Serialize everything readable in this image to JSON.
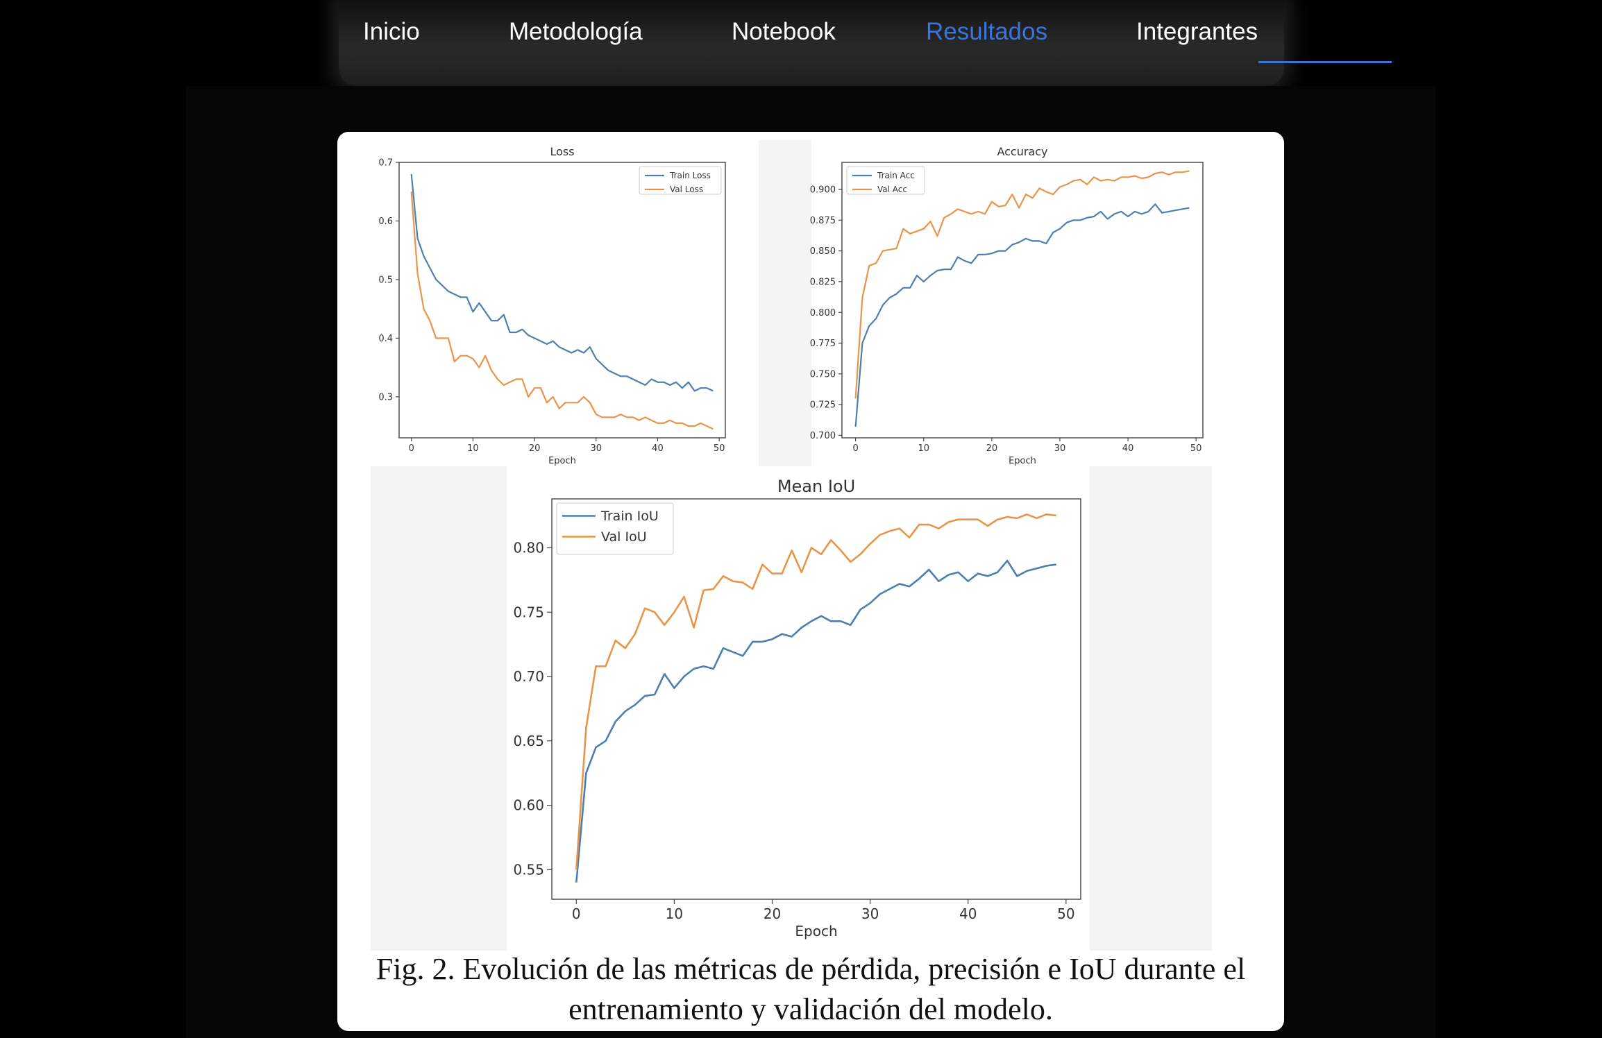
{
  "nav": {
    "items": [
      {
        "label": "Inicio"
      },
      {
        "label": "Metodología"
      },
      {
        "label": "Notebook"
      },
      {
        "label": "Resultados",
        "active": true
      },
      {
        "label": "Integrantes"
      }
    ],
    "active_color": "#3b74d8"
  },
  "figure": {
    "caption_line1": "Fig. 2. Evolución de las métricas de pérdida, precisión e IoU durante el",
    "caption_line2": "entrenamiento y validación del modelo."
  },
  "chart_data": [
    {
      "type": "line",
      "title": "Loss",
      "xlabel": "Epoch",
      "ylabel": "",
      "xlim": [
        -2,
        51
      ],
      "ylim": [
        0.23,
        0.7
      ],
      "xticks": [
        0,
        10,
        20,
        30,
        40,
        50
      ],
      "yticks": [
        0.3,
        0.4,
        0.5,
        0.6,
        0.7
      ],
      "ytick_decimals": 1,
      "legend": "top-right",
      "series": [
        {
          "name": "Train Loss",
          "color": "#4c7fb0",
          "values": [
            0.68,
            0.57,
            0.54,
            0.52,
            0.5,
            0.49,
            0.48,
            0.475,
            0.47,
            0.47,
            0.445,
            0.46,
            0.445,
            0.43,
            0.43,
            0.44,
            0.41,
            0.41,
            0.415,
            0.405,
            0.4,
            0.395,
            0.39,
            0.395,
            0.385,
            0.38,
            0.375,
            0.38,
            0.375,
            0.385,
            0.365,
            0.355,
            0.345,
            0.34,
            0.335,
            0.335,
            0.33,
            0.325,
            0.32,
            0.33,
            0.325,
            0.325,
            0.32,
            0.325,
            0.315,
            0.325,
            0.31,
            0.315,
            0.315,
            0.31
          ]
        },
        {
          "name": "Val Loss",
          "color": "#e8954a",
          "values": [
            0.65,
            0.51,
            0.45,
            0.43,
            0.4,
            0.4,
            0.4,
            0.36,
            0.37,
            0.37,
            0.365,
            0.35,
            0.37,
            0.345,
            0.33,
            0.32,
            0.325,
            0.33,
            0.33,
            0.3,
            0.315,
            0.315,
            0.29,
            0.3,
            0.28,
            0.29,
            0.29,
            0.29,
            0.3,
            0.29,
            0.27,
            0.265,
            0.265,
            0.265,
            0.27,
            0.265,
            0.265,
            0.26,
            0.265,
            0.26,
            0.255,
            0.255,
            0.26,
            0.255,
            0.255,
            0.25,
            0.25,
            0.255,
            0.25,
            0.245
          ]
        }
      ]
    },
    {
      "type": "line",
      "title": "Accuracy",
      "xlabel": "Epoch",
      "ylabel": "",
      "xlim": [
        -2,
        51
      ],
      "ylim": [
        0.698,
        0.922
      ],
      "xticks": [
        0,
        10,
        20,
        30,
        40,
        50
      ],
      "yticks": [
        0.7,
        0.725,
        0.75,
        0.775,
        0.8,
        0.825,
        0.85,
        0.875,
        0.9
      ],
      "ytick_decimals": 3,
      "legend": "top-left",
      "series": [
        {
          "name": "Train Acc",
          "color": "#4c7fb0",
          "values": [
            0.707,
            0.775,
            0.789,
            0.795,
            0.806,
            0.812,
            0.815,
            0.82,
            0.82,
            0.83,
            0.825,
            0.83,
            0.834,
            0.835,
            0.835,
            0.845,
            0.842,
            0.84,
            0.847,
            0.847,
            0.848,
            0.85,
            0.85,
            0.855,
            0.857,
            0.86,
            0.858,
            0.858,
            0.856,
            0.865,
            0.868,
            0.873,
            0.875,
            0.875,
            0.877,
            0.878,
            0.882,
            0.876,
            0.88,
            0.882,
            0.878,
            0.882,
            0.88,
            0.882,
            0.888,
            0.881,
            0.882,
            0.883,
            0.884,
            0.885
          ]
        },
        {
          "name": "Val Acc",
          "color": "#e8954a",
          "values": [
            0.73,
            0.812,
            0.838,
            0.84,
            0.85,
            0.851,
            0.852,
            0.868,
            0.864,
            0.866,
            0.868,
            0.874,
            0.862,
            0.877,
            0.88,
            0.884,
            0.882,
            0.88,
            0.882,
            0.88,
            0.89,
            0.886,
            0.887,
            0.896,
            0.885,
            0.896,
            0.893,
            0.901,
            0.898,
            0.896,
            0.902,
            0.904,
            0.907,
            0.908,
            0.904,
            0.91,
            0.907,
            0.908,
            0.907,
            0.91,
            0.91,
            0.911,
            0.909,
            0.91,
            0.913,
            0.914,
            0.912,
            0.914,
            0.914,
            0.915
          ]
        }
      ]
    },
    {
      "type": "line",
      "title": "Mean IoU",
      "xlabel": "Epoch",
      "ylabel": "",
      "xlim": [
        -2.5,
        51.5
      ],
      "ylim": [
        0.527,
        0.838
      ],
      "xticks": [
        0,
        10,
        20,
        30,
        40,
        50
      ],
      "yticks": [
        0.55,
        0.6,
        0.65,
        0.7,
        0.75,
        0.8
      ],
      "ytick_decimals": 2,
      "legend": "top-left",
      "series": [
        {
          "name": "Train IoU",
          "color": "#4c7fb0",
          "values": [
            0.54,
            0.625,
            0.645,
            0.65,
            0.665,
            0.673,
            0.678,
            0.685,
            0.686,
            0.702,
            0.691,
            0.7,
            0.706,
            0.708,
            0.706,
            0.722,
            0.719,
            0.716,
            0.727,
            0.727,
            0.729,
            0.733,
            0.731,
            0.738,
            0.743,
            0.747,
            0.743,
            0.743,
            0.74,
            0.752,
            0.757,
            0.764,
            0.768,
            0.772,
            0.77,
            0.776,
            0.783,
            0.774,
            0.779,
            0.781,
            0.774,
            0.78,
            0.778,
            0.781,
            0.79,
            0.778,
            0.782,
            0.784,
            0.786,
            0.787
          ]
        },
        {
          "name": "Val IoU",
          "color": "#e8954a",
          "values": [
            0.55,
            0.66,
            0.708,
            0.708,
            0.728,
            0.722,
            0.733,
            0.753,
            0.75,
            0.74,
            0.75,
            0.762,
            0.738,
            0.767,
            0.768,
            0.778,
            0.774,
            0.773,
            0.768,
            0.787,
            0.78,
            0.78,
            0.798,
            0.781,
            0.8,
            0.795,
            0.806,
            0.798,
            0.789,
            0.795,
            0.803,
            0.81,
            0.813,
            0.815,
            0.808,
            0.818,
            0.818,
            0.815,
            0.82,
            0.822,
            0.822,
            0.822,
            0.817,
            0.822,
            0.824,
            0.823,
            0.826,
            0.823,
            0.826,
            0.825
          ]
        }
      ]
    }
  ]
}
